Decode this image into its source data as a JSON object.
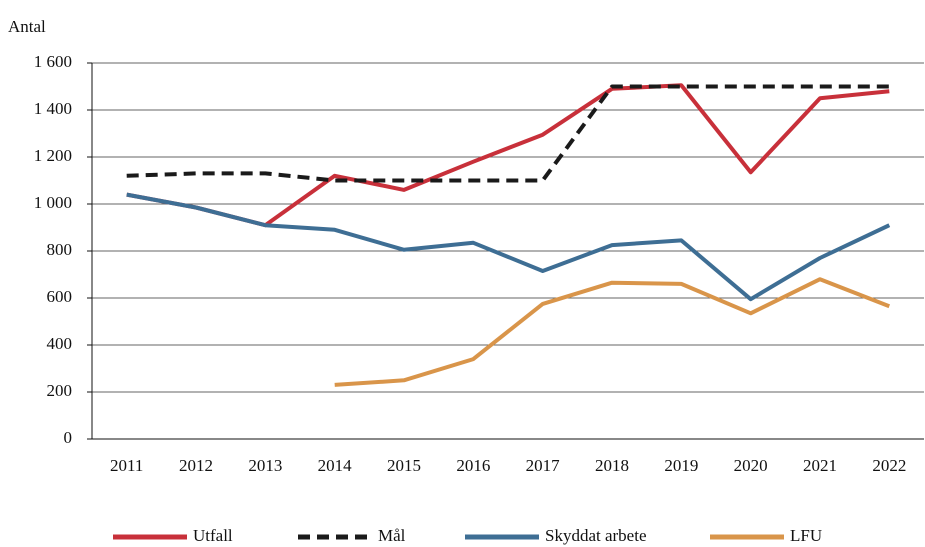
{
  "chart_data": {
    "type": "line",
    "y_label": "Antal",
    "categories": [
      "2011",
      "2012",
      "2013",
      "2014",
      "2015",
      "2016",
      "2017",
      "2018",
      "2019",
      "2020",
      "2021",
      "2022"
    ],
    "series": [
      {
        "name": "Utfall",
        "color": "#c8303a",
        "dash": false,
        "values": [
          1040,
          985,
          910,
          1120,
          1060,
          1180,
          1295,
          1490,
          1505,
          1135,
          1450,
          1480
        ]
      },
      {
        "name": "Mål",
        "color": "#1a1a1a",
        "dash": true,
        "values": [
          1120,
          1130,
          1130,
          1100,
          1100,
          1100,
          1100,
          1500,
          1500,
          1500,
          1500,
          1500
        ]
      },
      {
        "name": "Skyddat arbete",
        "color": "#3e6e94",
        "dash": false,
        "values": [
          1040,
          985,
          910,
          890,
          805,
          835,
          715,
          825,
          845,
          595,
          770,
          910
        ]
      },
      {
        "name": "LFU",
        "color": "#d9954a",
        "dash": false,
        "values": [
          null,
          null,
          null,
          230,
          250,
          340,
          575,
          665,
          660,
          535,
          680,
          565
        ]
      }
    ],
    "ylim": [
      0,
      1600
    ],
    "yticks": [
      0,
      200,
      400,
      600,
      800,
      {
        "value": 1000,
        "label": "1 000"
      },
      {
        "value": 1200,
        "label": "1 200"
      },
      {
        "value": 1400,
        "label": "1 400"
      },
      {
        "value": 1600,
        "label": "1 600"
      }
    ],
    "grid": true,
    "legend": "bottom"
  }
}
